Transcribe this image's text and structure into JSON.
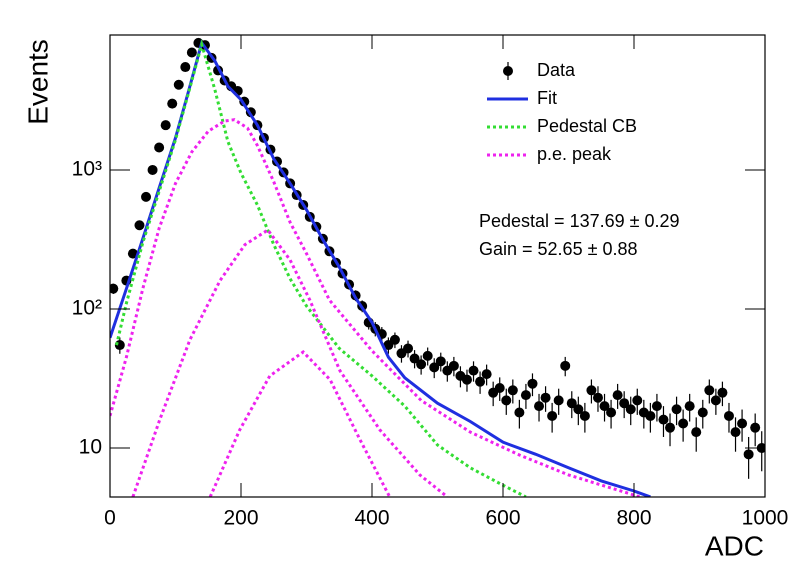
{
  "chart_data": {
    "type": "scatter",
    "xlabel": "ADC",
    "ylabel": "Events",
    "xlim": [
      0,
      1000
    ],
    "ylim": [
      4.44,
      9350
    ],
    "xticks": [
      0,
      200,
      400,
      600,
      800,
      1000
    ],
    "yticks": [
      10,
      {
        "value": 100,
        "label": "10²"
      },
      {
        "value": 1000,
        "label": "10³"
      }
    ],
    "log_y": true,
    "legend": "top-right",
    "annotations": [
      "Pedestal = 137.69 ± 0.29",
      "Gain = 52.65 ± 0.88"
    ],
    "series": [
      {
        "name": "Data",
        "style": "points",
        "color": "#000000",
        "x": [
          5,
          15,
          25,
          35,
          45,
          55,
          65,
          75,
          85,
          95,
          105,
          115,
          125,
          135,
          145,
          155,
          165,
          175,
          185,
          195,
          205,
          215,
          225,
          235,
          245,
          255,
          265,
          275,
          285,
          295,
          305,
          315,
          325,
          335,
          345,
          355,
          365,
          375,
          385,
          395,
          405,
          415,
          425,
          435,
          445,
          455,
          465,
          475,
          485,
          495,
          505,
          515,
          525,
          535,
          545,
          555,
          565,
          575,
          585,
          595,
          605,
          615,
          625,
          635,
          645,
          655,
          665,
          675,
          685,
          695,
          705,
          715,
          725,
          735,
          745,
          755,
          765,
          775,
          785,
          795,
          805,
          815,
          825,
          835,
          845,
          855,
          865,
          875,
          885,
          895,
          905,
          915,
          925,
          935,
          945,
          955,
          965,
          975,
          985,
          995
        ],
        "values": [
          140,
          55,
          160,
          250,
          400,
          640,
          1000,
          1450,
          2100,
          3000,
          4100,
          5500,
          7000,
          8200,
          7900,
          6400,
          5200,
          4400,
          4000,
          3700,
          3100,
          2600,
          2100,
          1700,
          1400,
          1150,
          960,
          800,
          660,
          560,
          460,
          390,
          320,
          260,
          215,
          180,
          150,
          125,
          105,
          80,
          72,
          66,
          55,
          60,
          48,
          52,
          44,
          40,
          46,
          38,
          42,
          36,
          39,
          33,
          31,
          36,
          30,
          34,
          25,
          27,
          22,
          26,
          18,
          24,
          29,
          20,
          23,
          17,
          22,
          39,
          21,
          19,
          17,
          26,
          23,
          20,
          18,
          24,
          21,
          19,
          22,
          18,
          17,
          20,
          16,
          14,
          19,
          15,
          20,
          13,
          18,
          26,
          22,
          25,
          17,
          13,
          15,
          9,
          14,
          10
        ],
        "errors": [
          11.8,
          7.4,
          12.6,
          15.8,
          20,
          25.3,
          31.6,
          38.1,
          45.8,
          54.8,
          64,
          74.2,
          83.7,
          90.6,
          88.9,
          80,
          72.1,
          66.3,
          63.2,
          60.8,
          55.7,
          51,
          45.8,
          41.2,
          37.4,
          33.9,
          31,
          28.3,
          25.7,
          23.7,
          21.4,
          19.7,
          17.9,
          16.1,
          14.7,
          13.4,
          12.2,
          11.2,
          10.2,
          8.9,
          8.5,
          8.1,
          7.4,
          7.7,
          6.9,
          7.2,
          6.6,
          6.3,
          6.8,
          6.2,
          6.5,
          6,
          6.2,
          5.7,
          5.6,
          6,
          5.5,
          5.8,
          5,
          5.2,
          4.7,
          5.1,
          4.2,
          4.9,
          5.4,
          4.5,
          4.8,
          4.1,
          4.7,
          6.2,
          4.6,
          4.4,
          4.1,
          5.1,
          4.8,
          4.5,
          4.2,
          4.9,
          4.6,
          4.4,
          4.7,
          4.2,
          4.1,
          4.5,
          4,
          3.7,
          4.4,
          3.9,
          4.5,
          3.6,
          4.2,
          5.1,
          4.7,
          5,
          4.1,
          3.6,
          3.9,
          3,
          3.7,
          3.2
        ]
      },
      {
        "name": "Fit",
        "style": "line",
        "color": "#1f2fe0",
        "x": [
          0,
          25,
          50,
          75,
          100,
          120,
          140,
          160,
          180,
          200,
          225,
          250,
          275,
          300,
          325,
          350,
          375,
          400,
          425,
          450,
          500,
          550,
          600,
          650,
          700,
          750,
          800,
          825
        ],
        "values": [
          62,
          140,
          320,
          740,
          1700,
          3700,
          8200,
          6100,
          4000,
          3200,
          2100,
          1200,
          800,
          517,
          315,
          200,
          120,
          80,
          45,
          32,
          21,
          15.5,
          11,
          9,
          7.2,
          5.8,
          4.9,
          4.45
        ]
      },
      {
        "name": "Pedestal CB",
        "style": "dotted",
        "color": "#33dd33",
        "x": [
          10,
          25,
          50,
          75,
          100,
          120,
          140,
          160,
          180,
          200,
          225,
          250,
          275,
          300,
          350,
          400,
          450,
          500,
          550,
          600,
          635
        ],
        "values": [
          55,
          110,
          300,
          700,
          1650,
          3600,
          8000,
          3800,
          1600,
          950,
          560,
          290,
          165,
          105,
          52,
          33,
          20,
          10.5,
          7.2,
          5.4,
          4.45
        ]
      },
      {
        "name": "p.e. peak",
        "style": "dotted",
        "color": "#ee22ee",
        "curves": [
          {
            "x": [
              0,
              25,
              50,
              75,
              100,
              125,
              150,
              175,
              190,
              210,
              225,
              250,
              275,
              300,
              335,
              400,
              475,
              550,
              625,
              700,
              809
            ],
            "values": [
              17,
              45,
              140,
              380,
              800,
              1350,
              1900,
              2250,
              2300,
              2000,
              1500,
              820,
              420,
              250,
              116,
              50,
              22,
              13,
              8.9,
              6.4,
              4.45
            ]
          },
          {
            "x": [
              35,
              76,
              122,
              168,
              206,
              241,
              275,
              305,
              351,
              412,
              473,
              515
            ],
            "values": [
              4.45,
              16,
              60,
              160,
              290,
              370,
              225,
              116,
              36,
              13.5,
              6.4,
              4.45
            ]
          },
          {
            "x": [
              153,
              198,
              244,
              295,
              336,
              382,
              427
            ],
            "values": [
              4.45,
              13.5,
              33,
              49,
              31,
              11.4,
              4.45
            ]
          }
        ]
      }
    ]
  }
}
